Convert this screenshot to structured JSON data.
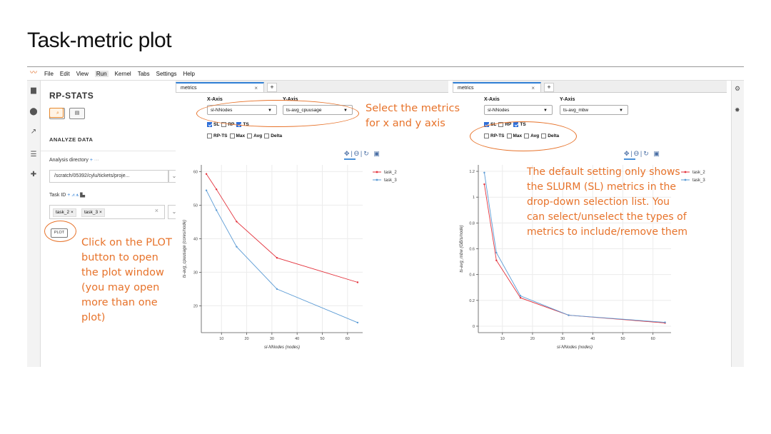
{
  "slide_title": "Task-metric plot",
  "menu": [
    "File",
    "Edit",
    "View",
    "Run",
    "Kernel",
    "Tabs",
    "Settings",
    "Help"
  ],
  "sidebar": {
    "brand": "RP-STATS",
    "analyze_label": "ANALYZE DATA",
    "dir_label": "Analysis directory",
    "dir_value": "/scratch/05392/cylu/tickets/proje...",
    "task_label": "Task ID",
    "tasks": [
      "task_2",
      "task_3"
    ],
    "plot_button": "PLOT"
  },
  "panels": [
    {
      "tab": "metrics",
      "x_axis_label": "X-Axis",
      "y_axis_label": "Y-Axis",
      "x_value": "sl-NNodes",
      "y_value": "ts-avg_cpuusage",
      "checks": [
        {
          "label": "SL",
          "on": true
        },
        {
          "label": "RP",
          "on": false
        },
        {
          "label": "TS",
          "on": true
        },
        {
          "label": "RP-TS",
          "on": false
        },
        {
          "label": "Max",
          "on": false
        },
        {
          "label": "Avg",
          "on": false
        },
        {
          "label": "Delta",
          "on": false
        }
      ]
    },
    {
      "tab": "metrics",
      "x_axis_label": "X-Axis",
      "y_axis_label": "Y-Axis",
      "x_value": "sl-NNodes",
      "y_value": "ts-avg_mbw",
      "checks": [
        {
          "label": "SL",
          "on": true
        },
        {
          "label": "RP",
          "on": false
        },
        {
          "label": "TS",
          "on": true
        },
        {
          "label": "RP-TS",
          "on": false
        },
        {
          "label": "Max",
          "on": false
        },
        {
          "label": "Avg",
          "on": false
        },
        {
          "label": "Delta",
          "on": false
        }
      ]
    }
  ],
  "colors": {
    "task_2": "#e3313b",
    "task_3": "#5b9bd5",
    "annotation": "#e7732b"
  },
  "annotations": {
    "select_metrics": [
      "Select the metrics",
      "for x and y axis"
    ],
    "click_plot": [
      "Click on the PLOT",
      "button to open",
      "the plot window",
      "(you may open",
      "more than one",
      "plot)"
    ],
    "default_setting": [
      "The default setting only shows",
      "the SLURM (SL) metrics in the",
      "drop-down selection list. You",
      "can select/unselect the types of",
      "metrics to include/remove them"
    ]
  },
  "chart_data": [
    {
      "type": "line",
      "xlabel": "sl-NNodes (nodes)",
      "ylabel": "ts-avg_cpuusage (cores/node)",
      "xlim": [
        2,
        66
      ],
      "ylim": [
        12,
        62
      ],
      "xticks": [
        10,
        20,
        30,
        40,
        50,
        60
      ],
      "yticks": [
        20,
        30,
        40,
        50,
        60
      ],
      "legend": "top-right",
      "series": [
        {
          "name": "task_2",
          "x": [
            4,
            8,
            16,
            32,
            64
          ],
          "values": [
            59.3,
            54.7,
            45.1,
            34.3,
            27.0
          ]
        },
        {
          "name": "task_3",
          "x": [
            4,
            8,
            16,
            32,
            64
          ],
          "values": [
            54.4,
            48.5,
            37.6,
            25.0,
            15.0
          ]
        }
      ]
    },
    {
      "type": "line",
      "xlabel": "sl-NNodes (nodes)",
      "ylabel": "ts-avg_mbw (GB/s/node)",
      "xlim": [
        2,
        66
      ],
      "ylim": [
        -0.05,
        1.25
      ],
      "xticks": [
        10,
        20,
        30,
        40,
        50,
        60
      ],
      "yticks": [
        0,
        0.2,
        0.4,
        0.6,
        0.8,
        1,
        1.2
      ],
      "legend": "top-right",
      "series": [
        {
          "name": "task_2",
          "x": [
            4,
            8,
            16,
            32,
            64
          ],
          "values": [
            1.1,
            0.51,
            0.22,
            0.085,
            0.025
          ]
        },
        {
          "name": "task_3",
          "x": [
            4,
            8,
            16,
            32,
            64
          ],
          "values": [
            1.19,
            0.57,
            0.235,
            0.085,
            0.03
          ]
        }
      ]
    }
  ]
}
